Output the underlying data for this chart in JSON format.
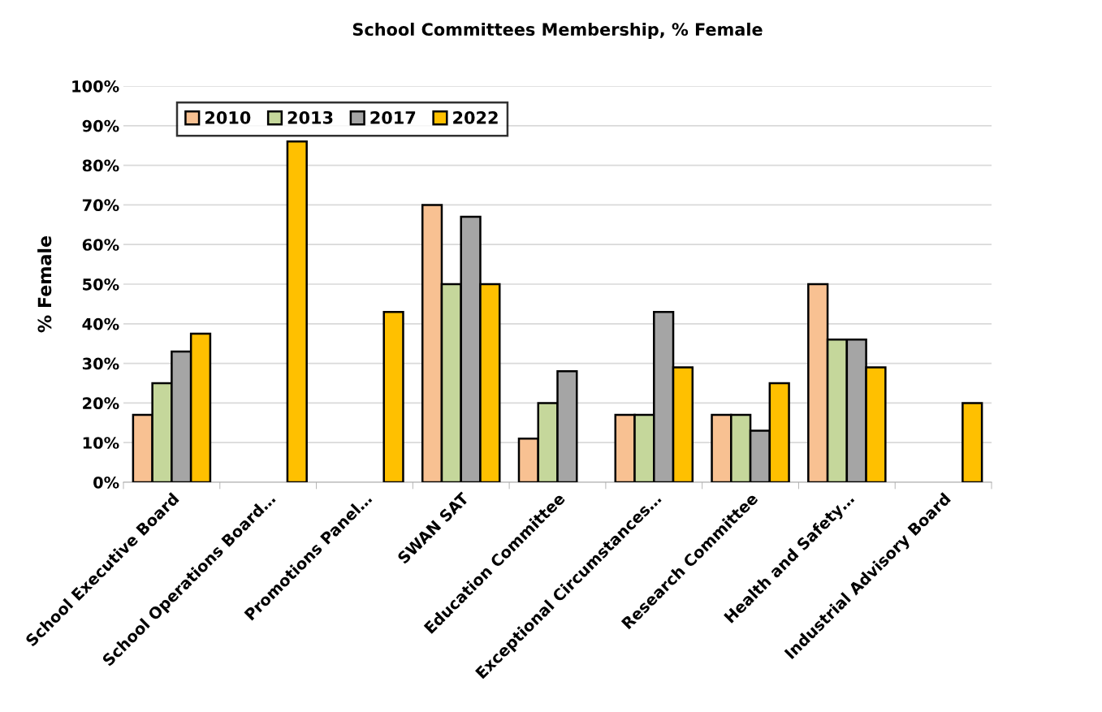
{
  "chart_data": {
    "type": "bar",
    "title": "School Committees Membership, % Female",
    "ylabel": "% Female",
    "categories": [
      "School Executive Board",
      "School Operations Board…",
      "Promotions Panel…",
      "SWAN SAT",
      "Education Committee",
      "Exceptional Circumstances…",
      "Research Committee",
      "Health and Safety…",
      "Industrial Advisory Board"
    ],
    "series": [
      {
        "name": "2010",
        "color": "#f8c192",
        "values": [
          17,
          null,
          null,
          70,
          11,
          17,
          17,
          50,
          null
        ]
      },
      {
        "name": "2013",
        "color": "#c5d79b",
        "values": [
          25,
          null,
          null,
          50,
          20,
          17,
          17,
          36,
          null
        ]
      },
      {
        "name": "2017",
        "color": "#a5a5a5",
        "values": [
          33,
          null,
          null,
          67,
          28,
          43,
          13,
          36,
          null
        ]
      },
      {
        "name": "2022",
        "color": "#ffc000",
        "values": [
          37.5,
          86,
          43,
          50,
          null,
          29,
          25,
          29,
          20
        ]
      }
    ],
    "ylim": [
      0,
      100
    ],
    "yticks": [
      {
        "value": 0,
        "label": "0%"
      },
      {
        "value": 10,
        "label": "10%"
      },
      {
        "value": 20,
        "label": "20%"
      },
      {
        "value": 30,
        "label": "30%"
      },
      {
        "value": 40,
        "label": "40%"
      },
      {
        "value": 50,
        "label": "50%"
      },
      {
        "value": 60,
        "label": "60%"
      },
      {
        "value": 70,
        "label": "70%"
      },
      {
        "value": 80,
        "label": "80%"
      },
      {
        "value": 90,
        "label": "90%"
      },
      {
        "value": 100,
        "label": "100%"
      }
    ],
    "grid": "y",
    "legend": "top left"
  }
}
